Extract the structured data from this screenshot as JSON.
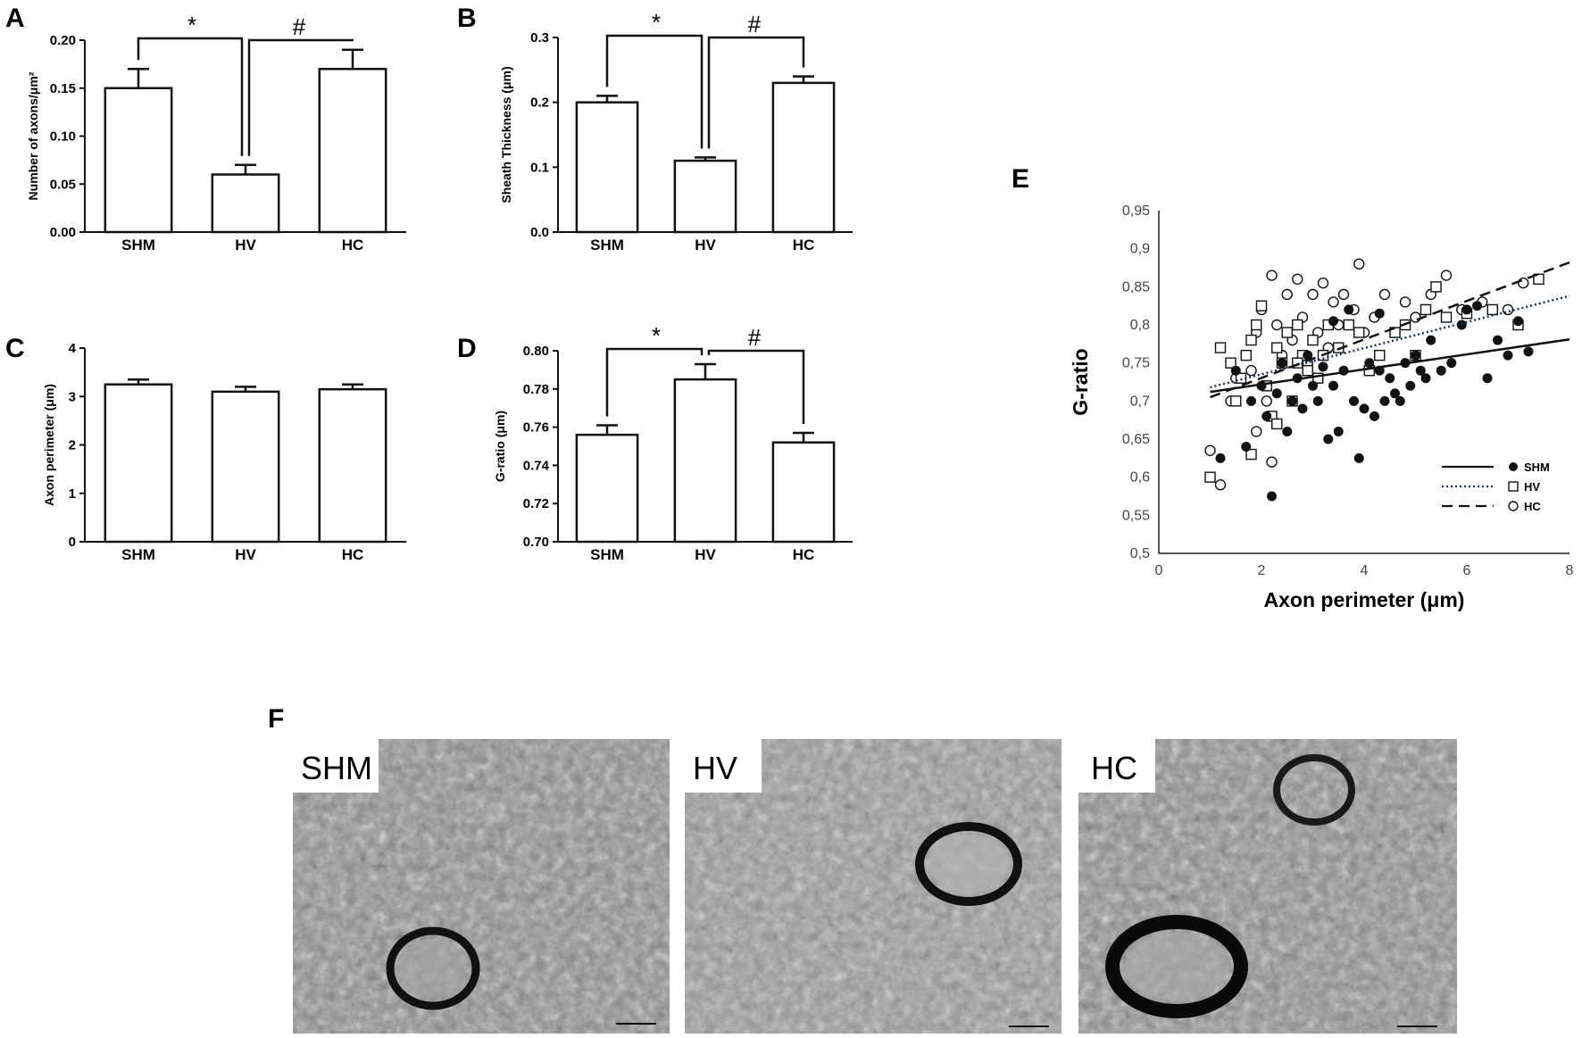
{
  "panels": {
    "A": "A",
    "B": "B",
    "C": "C",
    "D": "D",
    "E": "E",
    "F": "F"
  },
  "chart_data": [
    {
      "id": "A",
      "type": "bar",
      "categories": [
        "SHM",
        "HV",
        "HC"
      ],
      "values": [
        0.15,
        0.06,
        0.17
      ],
      "errors": [
        0.02,
        0.01,
        0.02
      ],
      "ylabel": "Number of axons/μm²",
      "ylim": [
        0,
        0.2
      ],
      "yticks": [
        "0.00",
        "0.05",
        "0.10",
        "0.15",
        "0.20"
      ],
      "significance": [
        {
          "from": 0,
          "to": 1,
          "symbol": "*"
        },
        {
          "from": 1,
          "to": 2,
          "symbol": "#"
        }
      ]
    },
    {
      "id": "B",
      "type": "bar",
      "categories": [
        "SHM",
        "HV",
        "HC"
      ],
      "values": [
        0.2,
        0.11,
        0.23
      ],
      "errors": [
        0.01,
        0.005,
        0.01
      ],
      "ylabel": "Sheath Thickness (μm)",
      "ylim": [
        0,
        0.3
      ],
      "yticks": [
        "0.0",
        "0.1",
        "0.2",
        "0.3"
      ],
      "significance": [
        {
          "from": 0,
          "to": 1,
          "symbol": "*"
        },
        {
          "from": 1,
          "to": 2,
          "symbol": "#"
        }
      ]
    },
    {
      "id": "C",
      "type": "bar",
      "categories": [
        "SHM",
        "HV",
        "HC"
      ],
      "values": [
        3.25,
        3.1,
        3.15
      ],
      "errors": [
        0.1,
        0.1,
        0.1
      ],
      "ylabel": "Axon perimeter (μm)",
      "ylim": [
        0,
        4
      ],
      "yticks": [
        "0",
        "1",
        "2",
        "3",
        "4"
      ],
      "significance": []
    },
    {
      "id": "D",
      "type": "bar",
      "categories": [
        "SHM",
        "HV",
        "HC"
      ],
      "values": [
        0.756,
        0.785,
        0.752
      ],
      "errors": [
        0.005,
        0.008,
        0.005
      ],
      "ylabel": "G-ratio (μm)",
      "ylim": [
        0.7,
        0.8
      ],
      "yticks": [
        "0.70",
        "0.72",
        "0.74",
        "0.76",
        "0.78",
        "0.80"
      ],
      "significance": [
        {
          "from": 0,
          "to": 1,
          "symbol": "*"
        },
        {
          "from": 1,
          "to": 2,
          "symbol": "#"
        }
      ]
    },
    {
      "id": "E",
      "type": "scatter",
      "xlabel": "Axon perimeter (μm)",
      "ylabel": "G-ratio",
      "xlim": [
        0,
        8
      ],
      "ylim": [
        0.5,
        0.95
      ],
      "xticks": [
        "0",
        "2",
        "4",
        "6",
        "8"
      ],
      "yticks": [
        "0,5",
        "0,55",
        "0,6",
        "0,65",
        "0,7",
        "0,75",
        "0,8",
        "0,85",
        "0,9",
        "0,95"
      ],
      "legend_position": "bottom-right",
      "series": [
        {
          "name": "SHM",
          "marker": "filled-circle",
          "line": "solid",
          "trend": [
            [
              1,
              0.712
            ],
            [
              8,
              0.781
            ]
          ],
          "points": [
            [
              1.2,
              0.625
            ],
            [
              1.5,
              0.74
            ],
            [
              1.7,
              0.64
            ],
            [
              1.8,
              0.7
            ],
            [
              2.0,
              0.72
            ],
            [
              2.1,
              0.68
            ],
            [
              2.2,
              0.575
            ],
            [
              2.3,
              0.71
            ],
            [
              2.4,
              0.75
            ],
            [
              2.5,
              0.66
            ],
            [
              2.6,
              0.7
            ],
            [
              2.7,
              0.73
            ],
            [
              2.8,
              0.69
            ],
            [
              2.9,
              0.76
            ],
            [
              3.0,
              0.72
            ],
            [
              3.1,
              0.7
            ],
            [
              3.2,
              0.745
            ],
            [
              3.3,
              0.65
            ],
            [
              3.4,
              0.72
            ],
            [
              3.5,
              0.66
            ],
            [
              3.6,
              0.74
            ],
            [
              3.8,
              0.7
            ],
            [
              3.9,
              0.625
            ],
            [
              4.0,
              0.69
            ],
            [
              4.1,
              0.75
            ],
            [
              4.2,
              0.68
            ],
            [
              4.3,
              0.74
            ],
            [
              4.4,
              0.7
            ],
            [
              4.5,
              0.73
            ],
            [
              4.6,
              0.71
            ],
            [
              4.7,
              0.7
            ],
            [
              4.8,
              0.75
            ],
            [
              4.9,
              0.72
            ],
            [
              5.0,
              0.76
            ],
            [
              5.1,
              0.74
            ],
            [
              5.2,
              0.73
            ],
            [
              5.3,
              0.78
            ],
            [
              5.5,
              0.74
            ],
            [
              5.7,
              0.75
            ],
            [
              5.9,
              0.8
            ],
            [
              6.0,
              0.82
            ],
            [
              6.2,
              0.825
            ],
            [
              6.4,
              0.73
            ],
            [
              6.6,
              0.78
            ],
            [
              6.8,
              0.76
            ],
            [
              7.0,
              0.805
            ],
            [
              7.2,
              0.765
            ],
            [
              3.4,
              0.805
            ],
            [
              3.7,
              0.82
            ],
            [
              4.3,
              0.815
            ]
          ]
        },
        {
          "name": "HV",
          "marker": "open-square",
          "line": "dotted",
          "trend": [
            [
              1,
              0.718
            ],
            [
              8,
              0.838
            ]
          ],
          "points": [
            [
              1.0,
              0.6
            ],
            [
              1.2,
              0.77
            ],
            [
              1.4,
              0.75
            ],
            [
              1.5,
              0.7
            ],
            [
              1.6,
              0.73
            ],
            [
              1.7,
              0.76
            ],
            [
              1.8,
              0.78
            ],
            [
              1.9,
              0.8
            ],
            [
              2.0,
              0.825
            ],
            [
              2.1,
              0.72
            ],
            [
              2.2,
              0.68
            ],
            [
              2.3,
              0.77
            ],
            [
              2.4,
              0.75
            ],
            [
              2.5,
              0.79
            ],
            [
              2.6,
              0.7
            ],
            [
              2.7,
              0.8
            ],
            [
              2.8,
              0.76
            ],
            [
              2.9,
              0.74
            ],
            [
              3.0,
              0.78
            ],
            [
              3.1,
              0.73
            ],
            [
              3.2,
              0.76
            ],
            [
              3.3,
              0.8
            ],
            [
              3.5,
              0.77
            ],
            [
              3.7,
              0.8
            ],
            [
              3.9,
              0.79
            ],
            [
              4.1,
              0.74
            ],
            [
              4.3,
              0.76
            ],
            [
              4.6,
              0.79
            ],
            [
              4.8,
              0.8
            ],
            [
              5.0,
              0.76
            ],
            [
              5.2,
              0.82
            ],
            [
              5.4,
              0.85
            ],
            [
              5.6,
              0.81
            ],
            [
              6.0,
              0.815
            ],
            [
              6.5,
              0.82
            ],
            [
              7.0,
              0.8
            ],
            [
              7.4,
              0.86
            ],
            [
              1.8,
              0.63
            ],
            [
              2.3,
              0.67
            ],
            [
              2.7,
              0.75
            ]
          ]
        },
        {
          "name": "HC",
          "marker": "open-circle",
          "line": "dashed",
          "trend": [
            [
              1,
              0.705
            ],
            [
              8,
              0.882
            ]
          ],
          "points": [
            [
              1.0,
              0.635
            ],
            [
              1.2,
              0.59
            ],
            [
              1.4,
              0.7
            ],
            [
              1.5,
              0.73
            ],
            [
              1.7,
              0.76
            ],
            [
              1.8,
              0.74
            ],
            [
              1.9,
              0.79
            ],
            [
              2.0,
              0.82
            ],
            [
              2.1,
              0.7
            ],
            [
              2.2,
              0.865
            ],
            [
              2.3,
              0.8
            ],
            [
              2.4,
              0.76
            ],
            [
              2.5,
              0.84
            ],
            [
              2.6,
              0.78
            ],
            [
              2.7,
              0.86
            ],
            [
              2.8,
              0.81
            ],
            [
              2.9,
              0.75
            ],
            [
              3.0,
              0.84
            ],
            [
              3.1,
              0.79
            ],
            [
              3.2,
              0.855
            ],
            [
              3.3,
              0.77
            ],
            [
              3.4,
              0.83
            ],
            [
              3.5,
              0.8
            ],
            [
              3.6,
              0.84
            ],
            [
              3.8,
              0.82
            ],
            [
              3.9,
              0.88
            ],
            [
              4.0,
              0.79
            ],
            [
              4.2,
              0.81
            ],
            [
              4.4,
              0.84
            ],
            [
              4.6,
              0.79
            ],
            [
              4.8,
              0.83
            ],
            [
              5.0,
              0.81
            ],
            [
              5.3,
              0.84
            ],
            [
              5.6,
              0.865
            ],
            [
              5.9,
              0.82
            ],
            [
              6.3,
              0.83
            ],
            [
              6.8,
              0.82
            ],
            [
              7.1,
              0.855
            ],
            [
              2.2,
              0.62
            ],
            [
              1.9,
              0.66
            ]
          ]
        }
      ]
    }
  ],
  "micrographs": [
    {
      "label": "SHM"
    },
    {
      "label": "HV"
    },
    {
      "label": "HC"
    }
  ]
}
